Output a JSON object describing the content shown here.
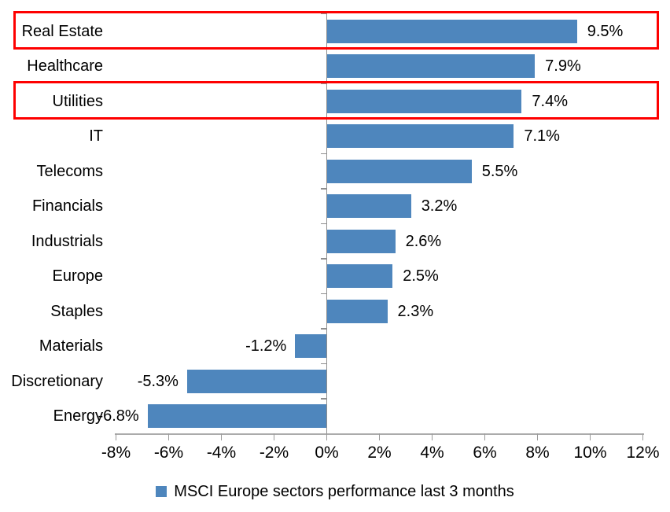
{
  "chart_data": {
    "type": "bar",
    "orientation": "horizontal",
    "title": "",
    "legend": "MSCI Europe sectors performance last 3 months",
    "legend_position": "bottom-center",
    "categories": [
      "Real Estate",
      "Healthcare",
      "Utilities",
      "IT",
      "Telecoms",
      "Financials",
      "Industrials",
      "Europe",
      "Staples",
      "Materials",
      "Discretionary",
      "Energy"
    ],
    "values": [
      9.5,
      7.9,
      7.4,
      7.1,
      5.5,
      3.2,
      2.6,
      2.5,
      2.3,
      -1.2,
      -5.3,
      -6.8
    ],
    "value_labels": [
      "9.5%",
      "7.9%",
      "7.4%",
      "7.1%",
      "5.5%",
      "3.2%",
      "2.6%",
      "2.5%",
      "2.3%",
      "-1.2%",
      "-5.3%",
      "-6.8%"
    ],
    "xlim": [
      -8,
      12
    ],
    "x_ticks": [
      -8,
      -6,
      -4,
      -2,
      0,
      2,
      4,
      6,
      8,
      10,
      12
    ],
    "x_tick_labels": [
      "-8%",
      "-6%",
      "-4%",
      "-2%",
      "0%",
      "2%",
      "4%",
      "6%",
      "8%",
      "10%",
      "12%"
    ],
    "grid": false,
    "bar_color": "#4e86bd",
    "axis_color": "#8f8f8f",
    "text_color": "#000000"
  },
  "annotations": {
    "highlighted_sectors": [
      "Real Estate",
      "Utilities"
    ],
    "box_color": "#fe0000"
  }
}
